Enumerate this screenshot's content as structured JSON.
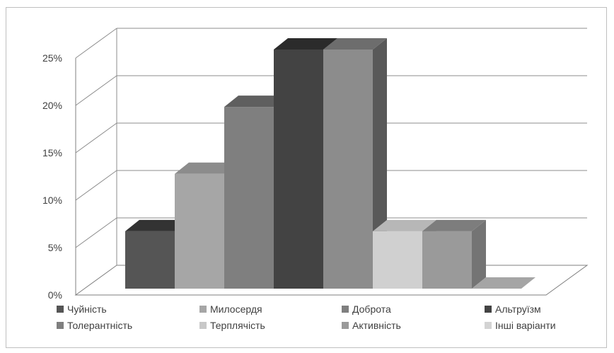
{
  "chart_data": {
    "type": "bar",
    "style": "3d-column",
    "categories": [
      "Чуйність",
      "Милосердя",
      "Доброта",
      "Альтруїзм",
      "Толерантність",
      "Терплячість",
      "Активність",
      "Інші варіанти"
    ],
    "values": [
      6,
      12,
      19,
      25,
      25,
      6,
      6,
      0
    ],
    "unit": "%",
    "ylim": [
      0,
      25
    ],
    "yticks": [
      "0%",
      "5%",
      "10%",
      "15%",
      "20%",
      "25%"
    ],
    "grid": true,
    "legend": {
      "placement": "bottom",
      "entries": [
        "Чуйність",
        "Милосердя",
        "Доброта",
        "Альтруїзм",
        "Толерантність",
        "Терплячість",
        "Активність",
        "Інші варіанти"
      ]
    },
    "colors": {
      "front": [
        "#555555",
        "#a6a6a6",
        "#7f7f7f",
        "#434343",
        "#8c8c8c",
        "#d0d0d0",
        "#9a9a9a",
        "#c8c8c8"
      ],
      "top": [
        "#333333",
        "#8c8c8c",
        "#5f5f5f",
        "#2b2b2b",
        "#6d6d6d",
        "#b7b7b7",
        "#7d7d7d",
        "#a5a5a5"
      ],
      "side": [
        "#3a3a3a",
        "#888888",
        "#666666",
        "#2e2e2e",
        "#595959",
        "#b0b0b0",
        "#747474",
        "#999999"
      ],
      "legend": [
        "#555555",
        "#a6a6a6",
        "#7f7f7f",
        "#434343",
        "#7f7f7f",
        "#c8c8c8",
        "#9a9a9a",
        "#d3d3d3"
      ],
      "grid": "#8c8c8c",
      "floor": "#7f7f7f"
    }
  }
}
